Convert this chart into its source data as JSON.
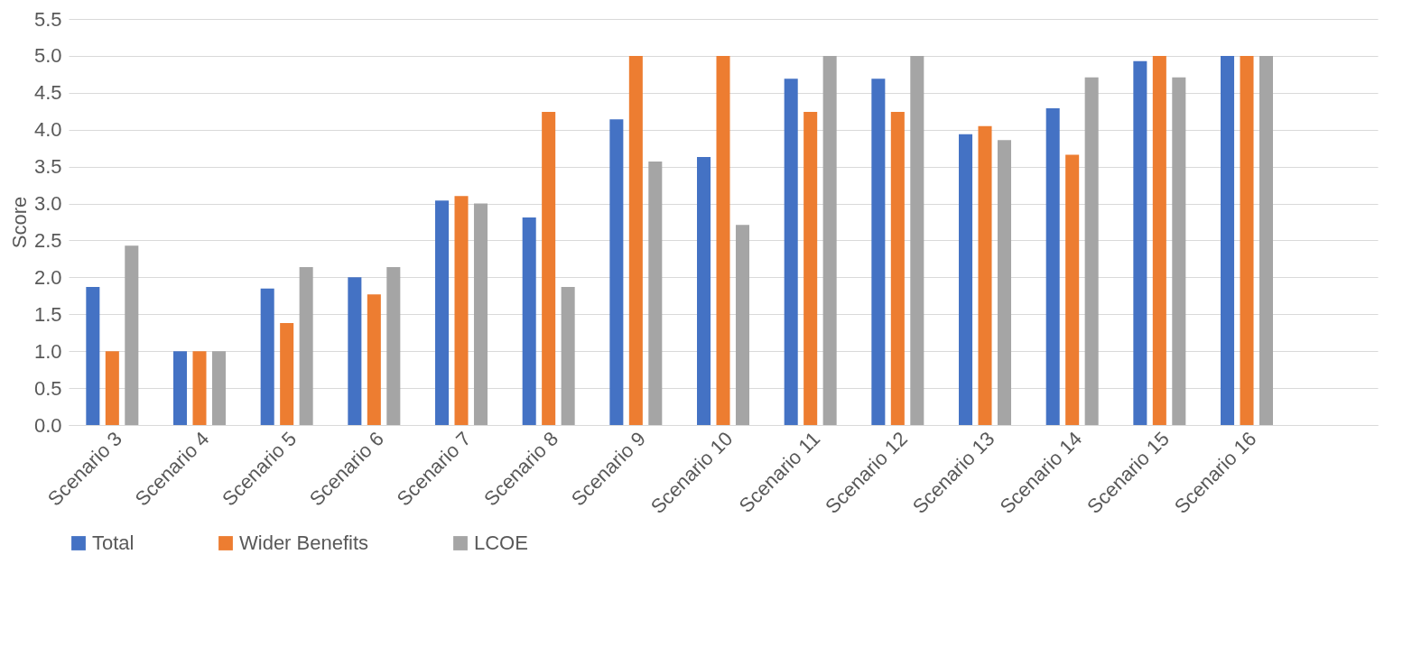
{
  "chart_data": {
    "type": "bar",
    "ylabel": "Score",
    "categories": [
      "Scenario 3",
      "Scenario 4",
      "Scenario 5",
      "Scenario 6",
      "Scenario 7",
      "Scenario 8",
      "Scenario 9",
      "Scenario 10",
      "Scenario 11",
      "Scenario 12",
      "Scenario 13",
      "Scenario 14",
      "Scenario 15",
      "Scenario 16",
      null
    ],
    "series": [
      {
        "name": "Total",
        "color": "#4472c4",
        "values": [
          1.87,
          1.0,
          1.85,
          2.0,
          3.04,
          2.81,
          4.14,
          3.63,
          4.69,
          4.69,
          3.94,
          4.29,
          4.93,
          5.0,
          null
        ]
      },
      {
        "name": "Wider Benefits",
        "color": "#ed7d31",
        "values": [
          1.0,
          1.0,
          1.38,
          1.77,
          3.1,
          4.24,
          5.0,
          5.0,
          4.24,
          4.24,
          4.05,
          3.66,
          5.0,
          5.0,
          null
        ]
      },
      {
        "name": "LCOE",
        "color": "#a5a5a5",
        "values": [
          2.43,
          1.0,
          2.14,
          2.14,
          3.0,
          1.87,
          3.57,
          2.71,
          5.0,
          5.0,
          3.86,
          4.71,
          4.71,
          5.0,
          null
        ]
      }
    ],
    "ylim": [
      0,
      5.5
    ],
    "yticks": [
      {
        "value": 0,
        "label": "0.0"
      },
      {
        "value": 0.5,
        "label": "0.5"
      },
      {
        "value": 1,
        "label": "1.0"
      },
      {
        "value": 1.5,
        "label": "1.5"
      },
      {
        "value": 2,
        "label": "2.0"
      },
      {
        "value": 2.5,
        "label": "2.5"
      },
      {
        "value": 3,
        "label": "3.0"
      },
      {
        "value": 3.5,
        "label": "3.5"
      },
      {
        "value": 4,
        "label": "4.0"
      },
      {
        "value": 4.5,
        "label": "4.5"
      },
      {
        "value": 5,
        "label": "5.0"
      },
      {
        "value": 5.5,
        "label": "5.5"
      }
    ],
    "grid": "y",
    "legend": "bottom"
  }
}
